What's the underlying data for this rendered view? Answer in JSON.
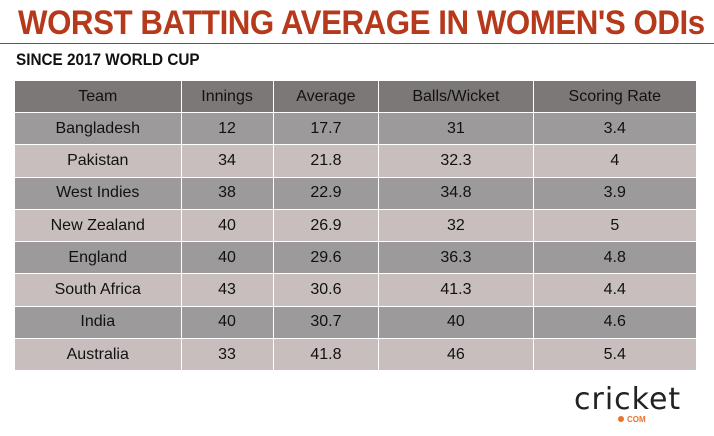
{
  "chart_data": {
    "type": "table",
    "title": "WORST BATTING AVERAGE IN WOMEN'S ODIs",
    "subtitle": "SINCE 2017 WORLD CUP",
    "columns": [
      "Team",
      "Innings",
      "Average",
      "Balls/Wicket",
      "Scoring Rate"
    ],
    "rows": [
      [
        "Bangladesh",
        "12",
        "17.7",
        "31",
        "3.4"
      ],
      [
        "Pakistan",
        "34",
        "21.8",
        "32.3",
        "4"
      ],
      [
        "West Indies",
        "38",
        "22.9",
        "34.8",
        "3.9"
      ],
      [
        "New Zealand",
        "40",
        "26.9",
        "32",
        "5"
      ],
      [
        "England",
        "40",
        "29.6",
        "36.3",
        "4.8"
      ],
      [
        "South Africa",
        "43",
        "30.6",
        "41.3",
        "4.4"
      ],
      [
        "India",
        "40",
        "30.7",
        "40",
        "4.6"
      ],
      [
        "Australia",
        "33",
        "41.8",
        "46",
        "5.4"
      ]
    ]
  },
  "logo": {
    "word": "cricket",
    "suffix": "COM"
  },
  "colors": {
    "title": "#b5391a",
    "header": "#7c7878",
    "row_dark": "#9c9a9a",
    "row_light": "#c9bebe"
  }
}
